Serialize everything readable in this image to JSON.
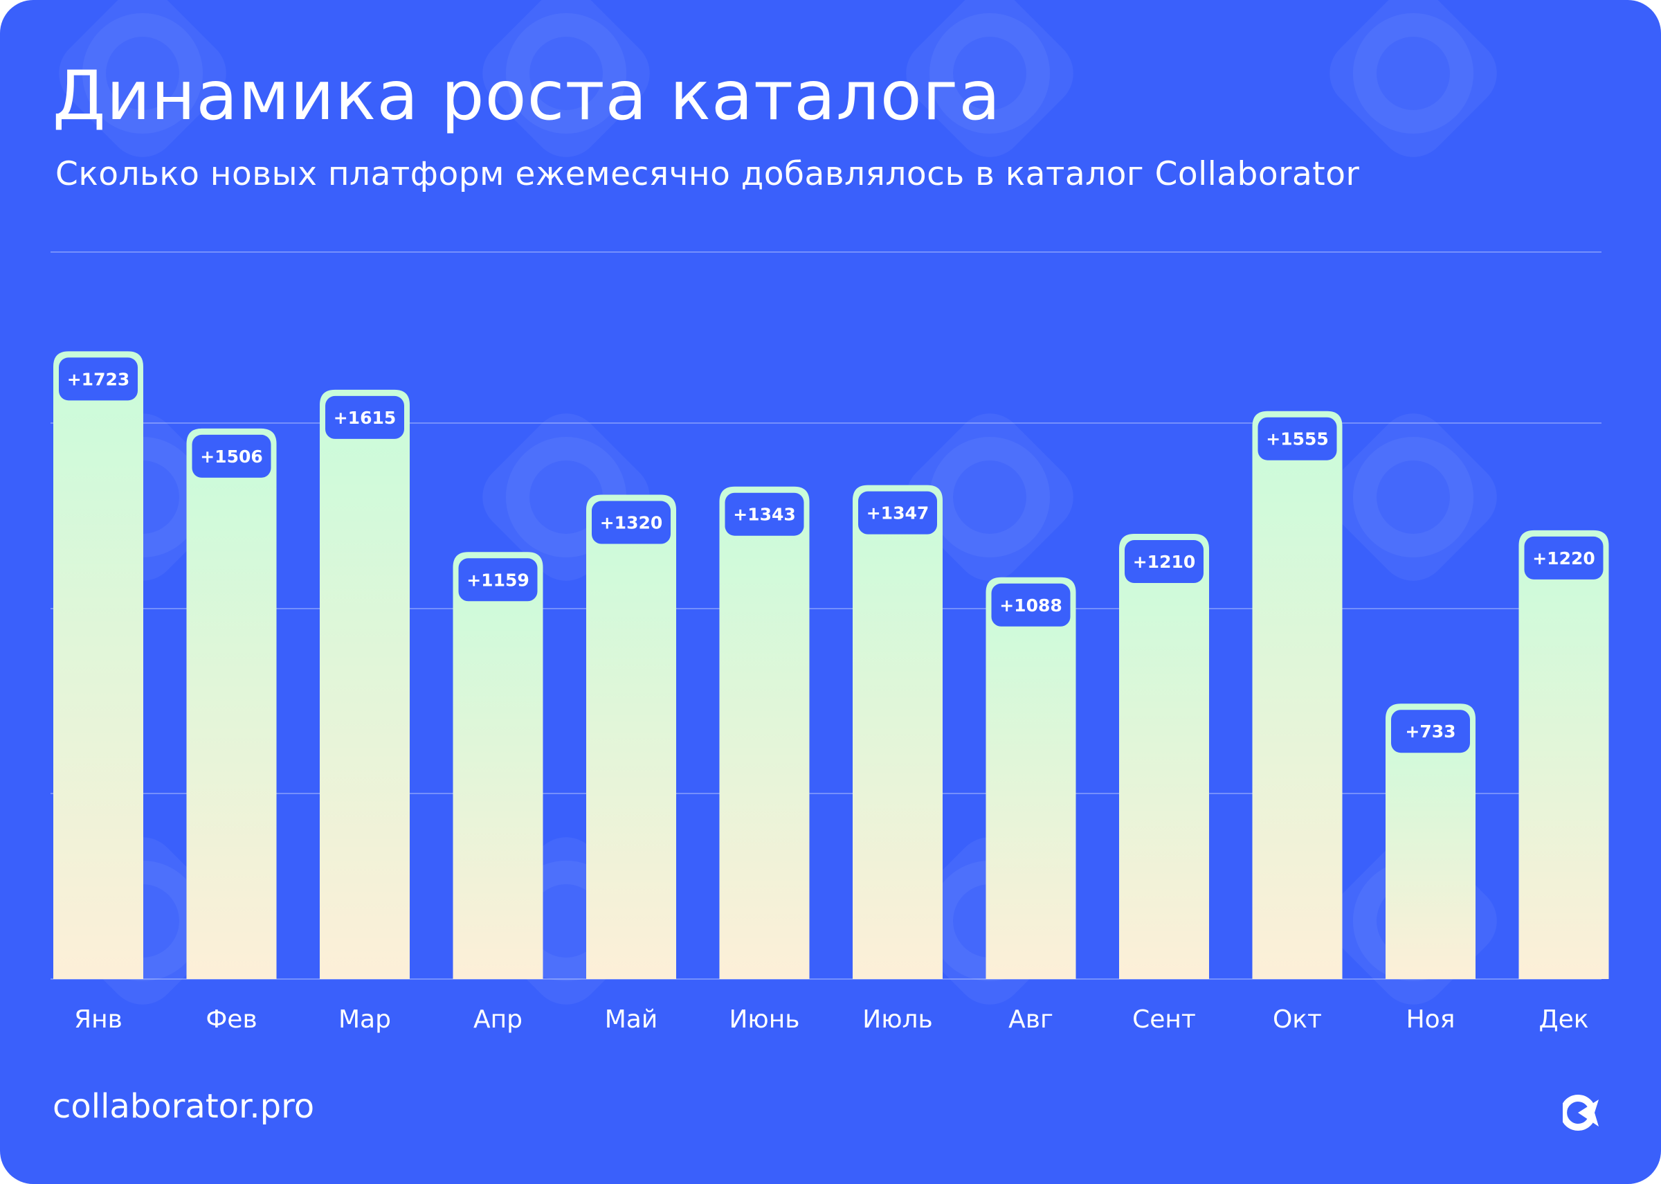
{
  "title": "Динамика роста каталога",
  "subtitle": "Сколько новых платформ ежемесячно добавлялось в каталог Collaborator",
  "footer": "collaborator.pro",
  "logo": "collaborator-logo-icon",
  "colors": {
    "background": "#3a60fb",
    "bar_top": "#c9fcda",
    "bar_bottom": "#fdefd8",
    "label_box": "#3a60fb",
    "text": "#ffffff"
  },
  "chart_data": {
    "type": "bar",
    "title": "Динамика роста каталога",
    "subtitle": "Сколько новых платформ ежемесячно добавлялось в каталог Collaborator",
    "categories": [
      "Янв",
      "Фев",
      "Мар",
      "Апр",
      "Май",
      "Июнь",
      "Июль",
      "Авг",
      "Сент",
      "Окт",
      "Ноя",
      "Дек"
    ],
    "values": [
      1723,
      1506,
      1615,
      1159,
      1320,
      1343,
      1347,
      1088,
      1210,
      1555,
      733,
      1220
    ],
    "data_labels": [
      "+1723",
      "+1506",
      "+1615",
      "+1159",
      "+1320",
      "+1343",
      "+1347",
      "+1088",
      "+1210",
      "+1555",
      "+733",
      "+1220"
    ],
    "grid": true,
    "xlabel": "",
    "ylabel": ""
  }
}
